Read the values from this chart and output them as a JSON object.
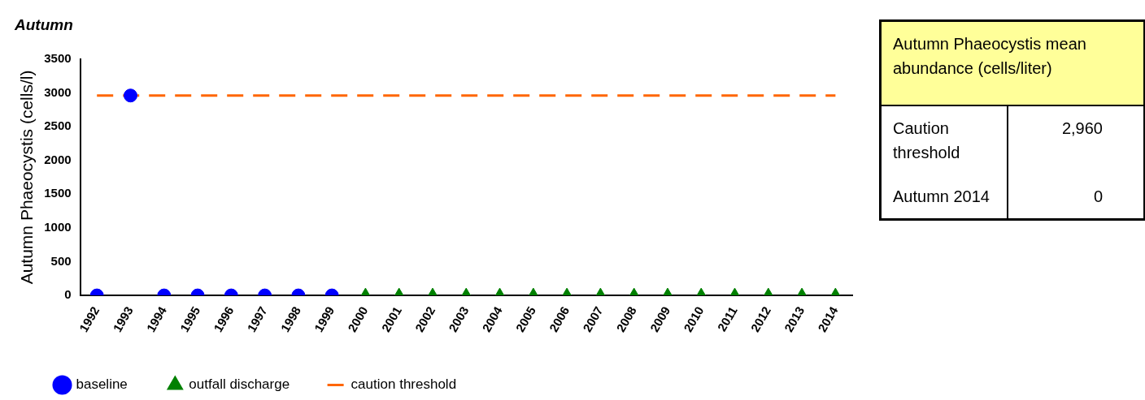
{
  "chart_data": [
    {
      "type": "scatter",
      "title": "Autumn",
      "ylabel": "Autumn Phaeocystis (cells/l)",
      "categories": [
        "1992",
        "1993",
        "1994",
        "1995",
        "1996",
        "1997",
        "1998",
        "1999",
        "2000",
        "2001",
        "2002",
        "2003",
        "2004",
        "2005",
        "2006",
        "2007",
        "2008",
        "2009",
        "2010",
        "2011",
        "2012",
        "2013",
        "2014"
      ],
      "series": [
        {
          "name": "baseline",
          "type": "scatter",
          "marker": "circle",
          "color": "#0000ff",
          "values": [
            0,
            2960,
            0,
            0,
            0,
            0,
            0,
            0,
            null,
            null,
            null,
            null,
            null,
            null,
            null,
            null,
            null,
            null,
            null,
            null,
            null,
            null,
            null
          ]
        },
        {
          "name": "outfall discharge",
          "type": "scatter",
          "marker": "triangle",
          "color": "#008000",
          "values": [
            null,
            null,
            null,
            null,
            null,
            null,
            null,
            null,
            0,
            0,
            0,
            0,
            0,
            0,
            0,
            0,
            0,
            0,
            0,
            0,
            0,
            0,
            0
          ]
        },
        {
          "name": "caution threshold",
          "type": "line",
          "marker": "none",
          "line_style": "dashed",
          "color": "#ff6600",
          "values": [
            2960,
            2960,
            2960,
            2960,
            2960,
            2960,
            2960,
            2960,
            2960,
            2960,
            2960,
            2960,
            2960,
            2960,
            2960,
            2960,
            2960,
            2960,
            2960,
            2960,
            2960,
            2960,
            2960
          ]
        }
      ],
      "ylim": [
        0,
        3500
      ],
      "yticks": [
        0,
        500,
        1000,
        1500,
        2000,
        2500,
        3000,
        3500
      ],
      "grid": false,
      "legend": "bottom"
    },
    {
      "type": "other",
      "title": "Autumn Phaeocystis mean abundance (cells/liter)",
      "annotations": [
        "Caution threshold",
        "2,960",
        "Autumn 2014",
        "0"
      ]
    }
  ]
}
